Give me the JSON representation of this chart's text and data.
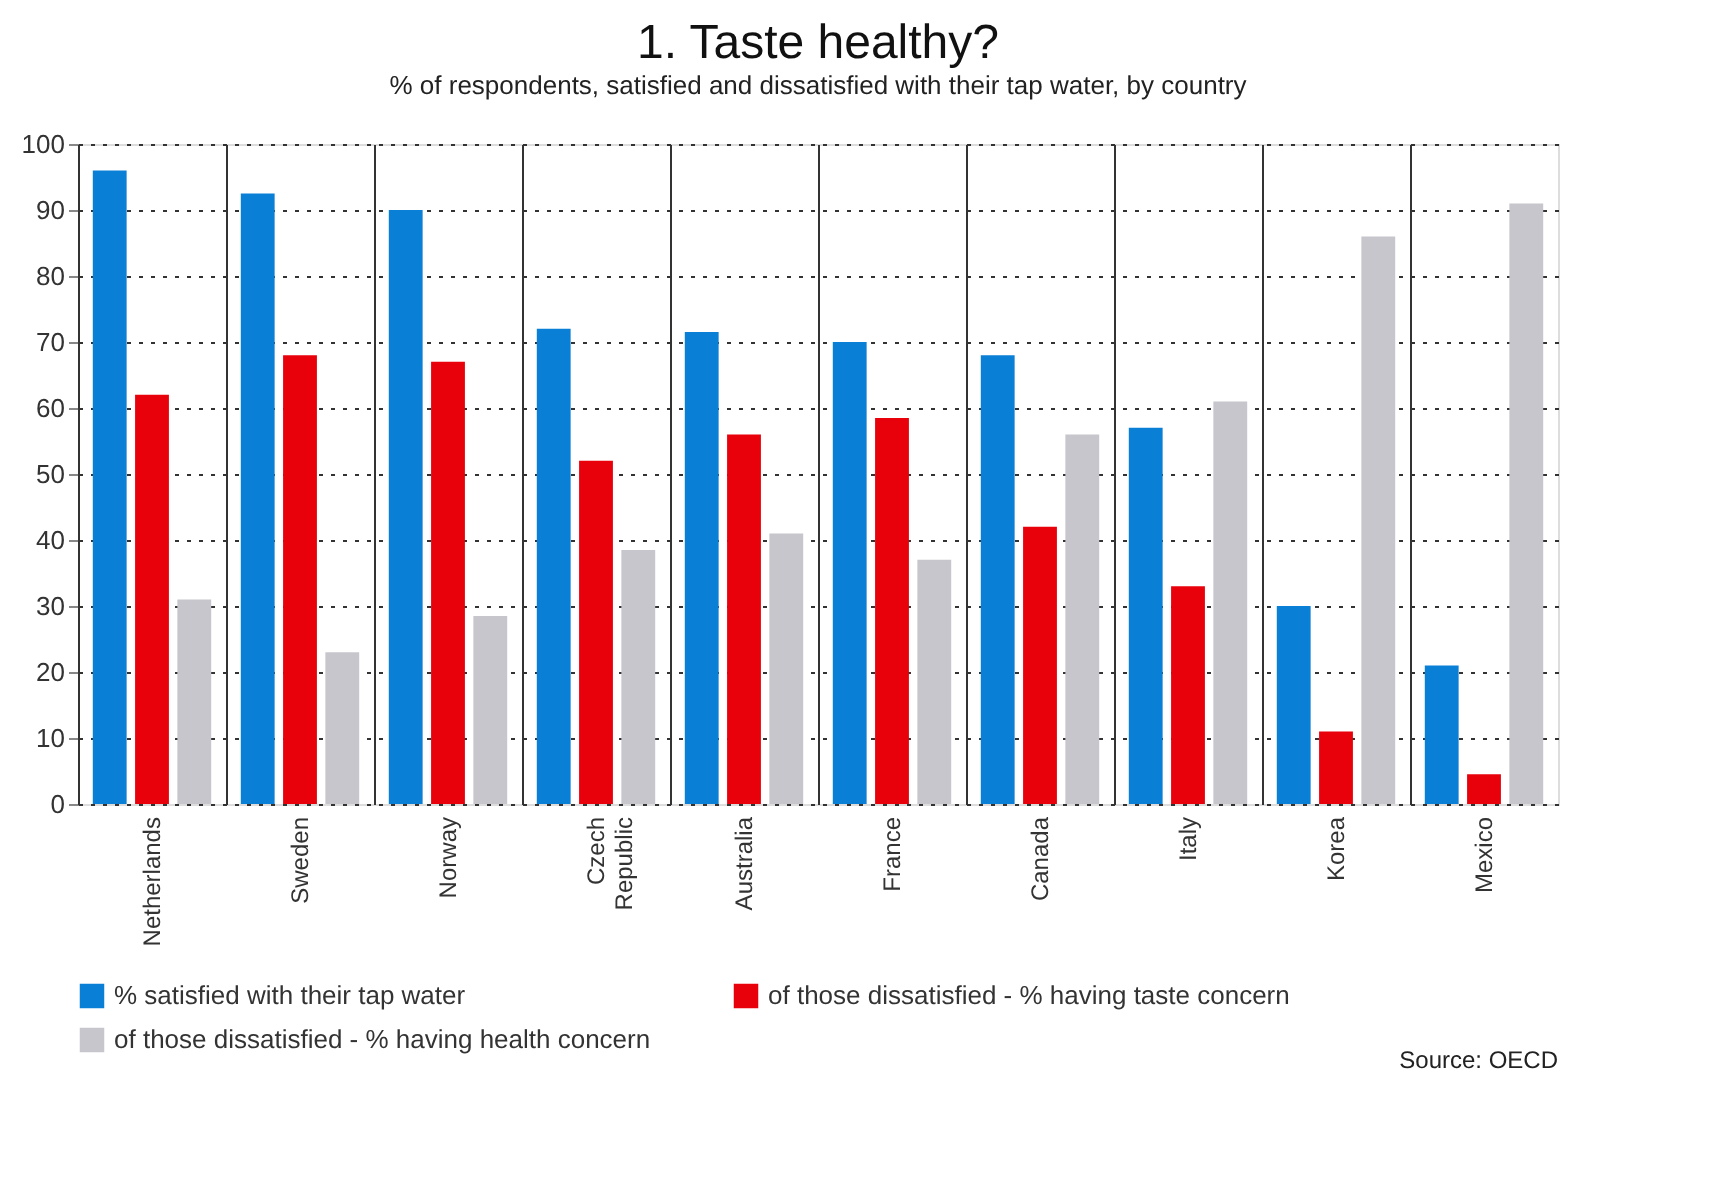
{
  "chart_data": {
    "type": "bar",
    "title": "1. Taste healthy?",
    "subtitle": "% of respondents, satisfied and dissatisfied with their tap water, by country",
    "categories": [
      "Netherlands",
      "Sweden",
      "Norway",
      "Czech Republic",
      "Australia",
      "France",
      "Canada",
      "Italy",
      "Korea",
      "Mexico"
    ],
    "series": [
      {
        "name": "% satisfied with their tap water",
        "color": "#0a7fd6",
        "values": [
          96,
          92.5,
          90,
          72,
          71.5,
          70,
          68,
          57,
          30,
          21
        ]
      },
      {
        "name": "of those dissatisfied - % having taste concern",
        "color": "#e8000b",
        "values": [
          62,
          68,
          67,
          52,
          56,
          58.5,
          42,
          33,
          11,
          4.5
        ]
      },
      {
        "name": "of those dissatisfied - % having health concern",
        "color": "#c6c6cc",
        "values": [
          31,
          23,
          28.5,
          38.5,
          41,
          37,
          56,
          61,
          86,
          91
        ]
      }
    ],
    "ylim": [
      0,
      100
    ],
    "yticks": [
      0,
      10,
      20,
      30,
      40,
      50,
      60,
      70,
      80,
      90,
      100
    ],
    "grid": true,
    "legend": "bottom",
    "annotations": [
      "Source: OECD"
    ]
  }
}
